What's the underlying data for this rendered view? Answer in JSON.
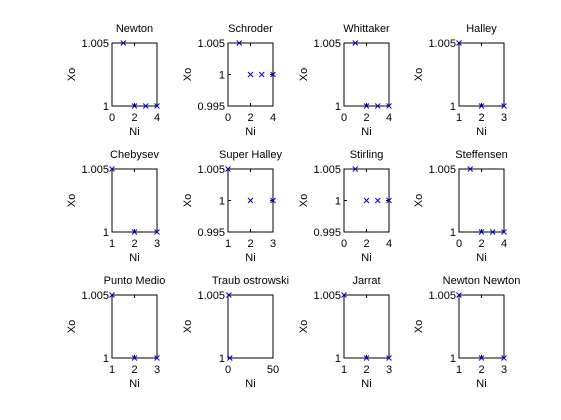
{
  "figure": {
    "background": "#ffffff",
    "marker_color": "#0000cc",
    "marker": "x"
  },
  "chart_data": [
    {
      "type": "scatter",
      "title": "Newton",
      "xlabel": "Ni",
      "ylabel": "Xo",
      "xlim": [
        0,
        4
      ],
      "ylim": [
        1,
        1.005
      ],
      "xticks": [
        0,
        2,
        4
      ],
      "xtick_labels": [
        "0",
        "2",
        "4"
      ],
      "yticks": [
        1,
        1.005
      ],
      "ytick_labels": [
        "1",
        "1.005"
      ],
      "x": [
        1,
        2,
        3,
        4
      ],
      "y": [
        1.005,
        1,
        1,
        1
      ]
    },
    {
      "type": "scatter",
      "title": "Schroder",
      "xlabel": "Ni",
      "ylabel": "Xo",
      "xlim": [
        0,
        4
      ],
      "ylim": [
        0.995,
        1.005
      ],
      "xticks": [
        0,
        2,
        4
      ],
      "xtick_labels": [
        "0",
        "2",
        "4"
      ],
      "yticks": [
        0.995,
        1,
        1.005
      ],
      "ytick_labels": [
        "0.995",
        "1",
        "1.005"
      ],
      "x": [
        1,
        2,
        3,
        4
      ],
      "y": [
        1.005,
        1,
        1,
        1
      ]
    },
    {
      "type": "scatter",
      "title": "Whittaker",
      "xlabel": "Ni",
      "ylabel": "Xo",
      "xlim": [
        0,
        4
      ],
      "ylim": [
        1,
        1.005
      ],
      "xticks": [
        0,
        2,
        4
      ],
      "xtick_labels": [
        "0",
        "2",
        "4"
      ],
      "yticks": [
        1,
        1.005
      ],
      "ytick_labels": [
        "1",
        "1.005"
      ],
      "x": [
        1,
        2,
        3,
        4
      ],
      "y": [
        1.005,
        1,
        1,
        1
      ]
    },
    {
      "type": "scatter",
      "title": "Halley",
      "xlabel": "Ni",
      "ylabel": "Xo",
      "xlim": [
        1,
        3
      ],
      "ylim": [
        1,
        1.005
      ],
      "xticks": [
        1,
        2,
        3
      ],
      "xtick_labels": [
        "1",
        "2",
        "3"
      ],
      "yticks": [
        1,
        1.005
      ],
      "ytick_labels": [
        "1",
        "1.005"
      ],
      "x": [
        1,
        2,
        3
      ],
      "y": [
        1.005,
        1,
        1
      ]
    },
    {
      "type": "scatter",
      "title": "Chebysev",
      "xlabel": "Ni",
      "ylabel": "Xo",
      "xlim": [
        1,
        3
      ],
      "ylim": [
        1,
        1.005
      ],
      "xticks": [
        1,
        2,
        3
      ],
      "xtick_labels": [
        "1",
        "2",
        "3"
      ],
      "yticks": [
        1,
        1.005
      ],
      "ytick_labels": [
        "1",
        "1.005"
      ],
      "x": [
        1,
        2,
        3
      ],
      "y": [
        1.005,
        1,
        1
      ]
    },
    {
      "type": "scatter",
      "title": "Super Halley",
      "xlabel": "Ni",
      "ylabel": "Xo",
      "xlim": [
        1,
        3
      ],
      "ylim": [
        0.995,
        1.005
      ],
      "xticks": [
        1,
        2,
        3
      ],
      "xtick_labels": [
        "1",
        "2",
        "3"
      ],
      "yticks": [
        0.995,
        1,
        1.005
      ],
      "ytick_labels": [
        "0.995",
        "1",
        "1.005"
      ],
      "x": [
        1,
        2,
        3
      ],
      "y": [
        1.005,
        1,
        1
      ]
    },
    {
      "type": "scatter",
      "title": "Stirling",
      "xlabel": "Ni",
      "ylabel": "Xo",
      "xlim": [
        0,
        4
      ],
      "ylim": [
        0.995,
        1.005
      ],
      "xticks": [
        0,
        2,
        4
      ],
      "xtick_labels": [
        "0",
        "2",
        "4"
      ],
      "yticks": [
        0.995,
        1,
        1.005
      ],
      "ytick_labels": [
        "0.995",
        "1",
        "1.005"
      ],
      "x": [
        1,
        2,
        3,
        4
      ],
      "y": [
        1.005,
        1,
        1,
        1
      ]
    },
    {
      "type": "scatter",
      "title": "Steffensen",
      "xlabel": "Ni",
      "ylabel": "Xo",
      "xlim": [
        0,
        4
      ],
      "ylim": [
        1,
        1.005
      ],
      "xticks": [
        0,
        2,
        4
      ],
      "xtick_labels": [
        "0",
        "2",
        "4"
      ],
      "yticks": [
        1,
        1.005
      ],
      "ytick_labels": [
        "1",
        "1.005"
      ],
      "x": [
        1,
        2,
        3,
        4
      ],
      "y": [
        1.005,
        1,
        1,
        1
      ]
    },
    {
      "type": "scatter",
      "title": "Punto Medio",
      "xlabel": "Ni",
      "ylabel": "Xo",
      "xlim": [
        1,
        3
      ],
      "ylim": [
        1,
        1.005
      ],
      "xticks": [
        1,
        2,
        3
      ],
      "xtick_labels": [
        "1",
        "2",
        "3"
      ],
      "yticks": [
        1,
        1.005
      ],
      "ytick_labels": [
        "1",
        "1.005"
      ],
      "x": [
        1,
        2,
        3
      ],
      "y": [
        1.005,
        1,
        1
      ]
    },
    {
      "type": "scatter",
      "title": "Traub ostrowski",
      "xlabel": "Ni",
      "ylabel": "Xo",
      "xlim": [
        0,
        50
      ],
      "ylim": [
        1,
        1.005
      ],
      "xticks": [
        0,
        50
      ],
      "xtick_labels": [
        "0",
        "50"
      ],
      "yticks": [
        1,
        1.005
      ],
      "ytick_labels": [
        "1",
        "1.005"
      ],
      "x": [
        1,
        2
      ],
      "y": [
        1.005,
        1
      ]
    },
    {
      "type": "scatter",
      "title": "Jarrat",
      "xlabel": "Ni",
      "ylabel": "Xo",
      "xlim": [
        1,
        3
      ],
      "ylim": [
        1,
        1.005
      ],
      "xticks": [
        1,
        2,
        3
      ],
      "xtick_labels": [
        "1",
        "2",
        "3"
      ],
      "yticks": [
        1,
        1.005
      ],
      "ytick_labels": [
        "1",
        "1.005"
      ],
      "x": [
        1,
        2,
        3
      ],
      "y": [
        1.005,
        1,
        1
      ]
    },
    {
      "type": "scatter",
      "title": "Newton Newton",
      "xlabel": "Ni",
      "ylabel": "Xo",
      "xlim": [
        1,
        3
      ],
      "ylim": [
        1,
        1.005
      ],
      "xticks": [
        1,
        2,
        3
      ],
      "xtick_labels": [
        "1",
        "2",
        "3"
      ],
      "yticks": [
        1,
        1.005
      ],
      "ytick_labels": [
        "1",
        "1.005"
      ],
      "x": [
        1,
        2,
        3
      ],
      "y": [
        1.005,
        1,
        1
      ]
    }
  ]
}
